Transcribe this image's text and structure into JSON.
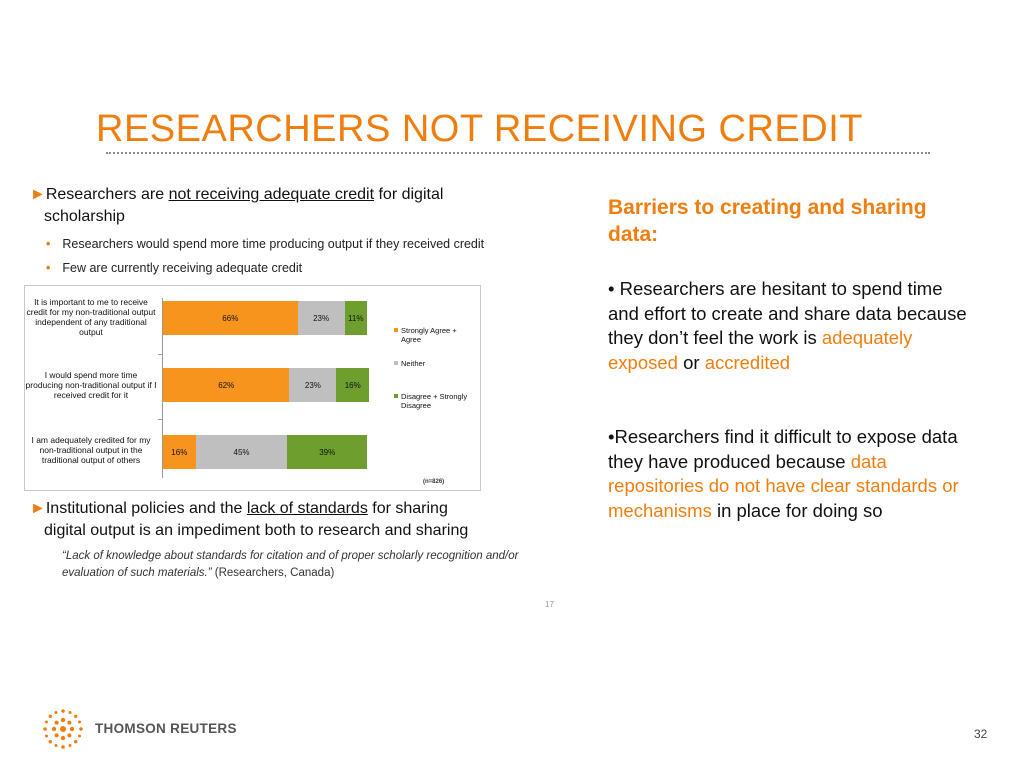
{
  "slide": {
    "title": "RESEARCHERS NOT RECEIVING CREDIT",
    "page_number": "32",
    "colors": {
      "accent": "#f07e0f",
      "agree": "#f7941d",
      "neither": "#bfbfbf",
      "disagree": "#6e9e2e"
    }
  },
  "left": {
    "bullet1": {
      "arrow": "►",
      "pre": "Researchers are ",
      "underlined": "not receiving adequate credit",
      "post": " for digital",
      "line2": "scholarship"
    },
    "sub_bullets": [
      "Researchers would spend more time producing output if they received credit",
      "Few are currently receiving adequate credit"
    ],
    "bullet2": {
      "arrow": "►",
      "pre": "Institutional policies and the ",
      "underlined": "lack of standards",
      "post": " for sharing",
      "line2": "digital output is an impediment both to research and sharing"
    },
    "quote": {
      "text": "“Lack of knowledge about standards for citation and of proper scholarly recognition and/or evaluation of such materials.”",
      "source": " (Researchers, Canada)"
    },
    "inner_page": "17"
  },
  "chart_data": {
    "type": "bar",
    "orientation": "horizontal",
    "stacked": true,
    "categories": [
      "It is important to me to receive credit for my non-traditional output independent of any traditional output",
      "I would spend more time producing non-traditional output if I received credit for it",
      "I am adequately credited for my non-traditional output in the traditional output of others"
    ],
    "series": [
      {
        "name": "Strongly Agree + Agree",
        "values": [
          66,
          62,
          16
        ],
        "labels": [
          "66%",
          "62%",
          "16%"
        ],
        "color": "#f7941d"
      },
      {
        "name": "Neither",
        "values": [
          23,
          23,
          45
        ],
        "labels": [
          "23%",
          "23%",
          "45%"
        ],
        "color": "#bfbfbf"
      },
      {
        "name": "Disagree + Strongly Disagree",
        "values": [
          11,
          16,
          39
        ],
        "labels": [
          "11%",
          "16%",
          "39%"
        ],
        "color": "#6e9e2e"
      }
    ],
    "xlim": [
      0,
      100
    ],
    "legend_position": "right",
    "grid": false,
    "annotation": "(n=826)"
  },
  "right": {
    "heading": "Barriers to creating and sharing data:",
    "p1": {
      "t1": "• Researchers are hesitant to spend time and effort to create and share data because they don’t feel the work is ",
      "h1": "adequately exposed",
      "t2": " or ",
      "h2": "accredited"
    },
    "p2": {
      "t1": "•Researchers find  it difficult to expose data they have produced because ",
      "h1": "data repositories do not have clear standards or mechanisms",
      "t2": " in place for doing so"
    }
  },
  "footer": {
    "brand": "THOMSON REUTERS"
  }
}
